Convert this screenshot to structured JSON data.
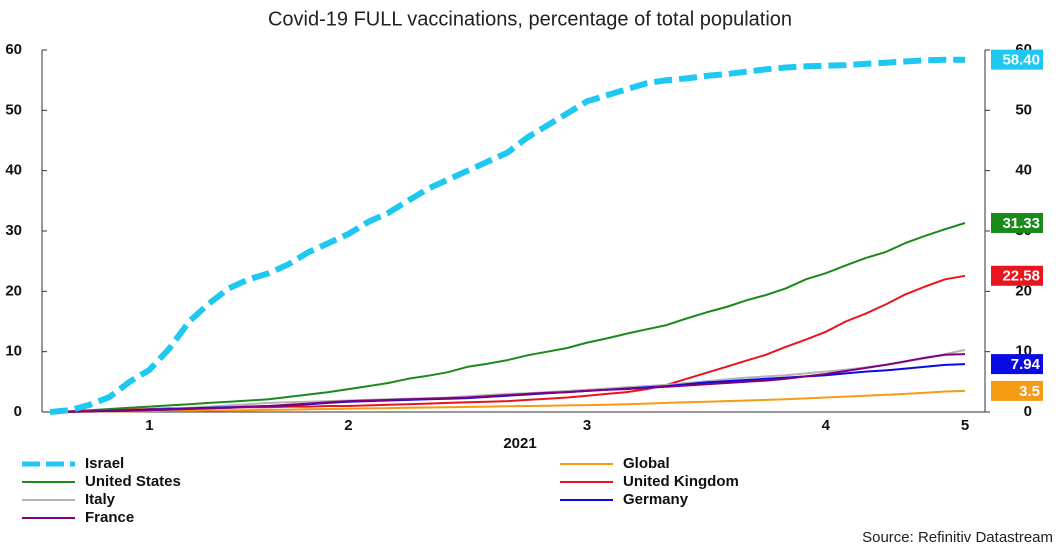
{
  "chart_data": {
    "type": "line",
    "title": "Covid-19 FULL vaccinations, percentage of total population",
    "x_label": "2021",
    "source": "Source: Refinitiv Datastream",
    "categories": [
      null,
      null,
      null,
      null,
      null,
      "1",
      null,
      null,
      null,
      null,
      null,
      null,
      null,
      null,
      null,
      "2",
      null,
      null,
      null,
      null,
      null,
      null,
      null,
      null,
      null,
      null,
      null,
      "3",
      null,
      null,
      null,
      null,
      null,
      null,
      null,
      null,
      null,
      null,
      null,
      "4",
      null,
      null,
      null,
      null,
      null,
      null,
      "5"
    ],
    "ylim": [
      0,
      60
    ],
    "yticks": [
      0,
      10,
      20,
      30,
      40,
      50,
      60
    ],
    "y2lim": [
      0,
      60
    ],
    "y2ticks": [
      0,
      10,
      20,
      30,
      40,
      50,
      60
    ],
    "series": [
      {
        "name": "Israel",
        "color": "#1ec8f0",
        "dashed": true,
        "last_label": "58.40",
        "values": [
          0,
          0.3,
          1.2,
          2.5,
          5,
          7,
          10.5,
          15,
          18,
          20.5,
          22,
          23,
          24.5,
          26.5,
          28,
          29.5,
          31.5,
          33,
          35,
          37,
          38.5,
          40,
          41.5,
          43,
          45.5,
          47.5,
          49.5,
          51.5,
          52.5,
          53.5,
          54.5,
          55,
          55.3,
          55.7,
          56,
          56.4,
          56.8,
          57.1,
          57.3,
          57.4,
          57.5,
          57.7,
          57.9,
          58.1,
          58.3,
          58.4,
          58.4
        ]
      },
      {
        "name": "Global",
        "color": "#f59b14",
        "last_label": "3.5",
        "values": [
          0,
          0,
          0.05,
          0.1,
          0.1,
          0.15,
          0.2,
          0.2,
          0.25,
          0.3,
          0.3,
          0.35,
          0.4,
          0.45,
          0.5,
          0.55,
          0.6,
          0.65,
          0.7,
          0.75,
          0.8,
          0.85,
          0.9,
          0.95,
          1,
          1.05,
          1.1,
          1.15,
          1.2,
          1.3,
          1.4,
          1.5,
          1.6,
          1.7,
          1.8,
          1.9,
          2,
          2.1,
          2.25,
          2.4,
          2.55,
          2.7,
          2.85,
          3,
          3.2,
          3.4,
          3.5
        ]
      },
      {
        "name": "United States",
        "color": "#1a8a1a",
        "last_label": "31.33",
        "values": [
          0,
          0.1,
          0.3,
          0.5,
          0.7,
          0.9,
          1.1,
          1.3,
          1.5,
          1.7,
          1.9,
          2.1,
          2.5,
          2.9,
          3.3,
          3.8,
          4.3,
          4.8,
          5.5,
          6,
          6.6,
          7.5,
          8,
          8.6,
          9.4,
          10,
          10.6,
          11.5,
          12.2,
          13,
          13.7,
          14.4,
          15.5,
          16.5,
          17.4,
          18.5,
          19.4,
          20.5,
          22,
          23,
          24.3,
          25.5,
          26.5,
          28,
          29.2,
          30.3,
          31.33
        ]
      },
      {
        "name": "United Kingdom",
        "color": "#e8141e",
        "last_label": "22.58",
        "values": [
          0,
          0.1,
          0.2,
          0.3,
          0.4,
          0.5,
          0.6,
          0.6,
          0.7,
          0.7,
          0.8,
          0.8,
          0.9,
          0.9,
          1,
          1,
          1.1,
          1.2,
          1.3,
          1.4,
          1.5,
          1.6,
          1.7,
          1.8,
          2,
          2.2,
          2.4,
          2.7,
          3,
          3.3,
          3.8,
          4.5,
          5.5,
          6.5,
          7.5,
          8.5,
          9.5,
          10.8,
          12,
          13.3,
          15,
          16.3,
          17.8,
          19.5,
          20.8,
          22,
          22.58
        ]
      },
      {
        "name": "Italy",
        "color": "#b4b4b4",
        "values": [
          0,
          0.05,
          0.1,
          0.2,
          0.3,
          0.4,
          0.5,
          0.7,
          0.9,
          1.1,
          1.3,
          1.5,
          1.6,
          1.7,
          1.8,
          1.9,
          2,
          2.1,
          2.2,
          2.3,
          2.4,
          2.6,
          2.8,
          3,
          3.1,
          3.3,
          3.5,
          3.7,
          3.9,
          4.1,
          4.3,
          4.5,
          4.8,
          5.1,
          5.4,
          5.7,
          5.9,
          6.1,
          6.4,
          6.7,
          7,
          7.4,
          7.8,
          8.3,
          8.9,
          9.6,
          10.3
        ]
      },
      {
        "name": "Germany",
        "color": "#0a0ae6",
        "last_label": "7.94",
        "values": [
          0,
          0.05,
          0.1,
          0.2,
          0.3,
          0.4,
          0.5,
          0.6,
          0.7,
          0.8,
          0.9,
          1,
          1.1,
          1.3,
          1.5,
          1.7,
          1.8,
          1.9,
          2,
          2.1,
          2.2,
          2.3,
          2.5,
          2.7,
          2.9,
          3.1,
          3.3,
          3.5,
          3.7,
          3.9,
          4.1,
          4.3,
          4.6,
          4.9,
          5.1,
          5.3,
          5.5,
          5.7,
          5.9,
          6.1,
          6.4,
          6.7,
          6.9,
          7.2,
          7.5,
          7.8,
          7.94
        ]
      },
      {
        "name": "France",
        "color": "#800080",
        "values": [
          0,
          0.05,
          0.1,
          0.15,
          0.2,
          0.3,
          0.4,
          0.5,
          0.6,
          0.7,
          0.9,
          1,
          1.2,
          1.4,
          1.6,
          1.8,
          1.9,
          2,
          2.1,
          2.2,
          2.3,
          2.4,
          2.6,
          2.8,
          3,
          3.2,
          3.3,
          3.5,
          3.7,
          3.8,
          4,
          4.2,
          4.4,
          4.6,
          4.8,
          5,
          5.2,
          5.5,
          5.9,
          6.3,
          6.8,
          7.3,
          7.8,
          8.4,
          9,
          9.5,
          9.6
        ]
      }
    ]
  }
}
